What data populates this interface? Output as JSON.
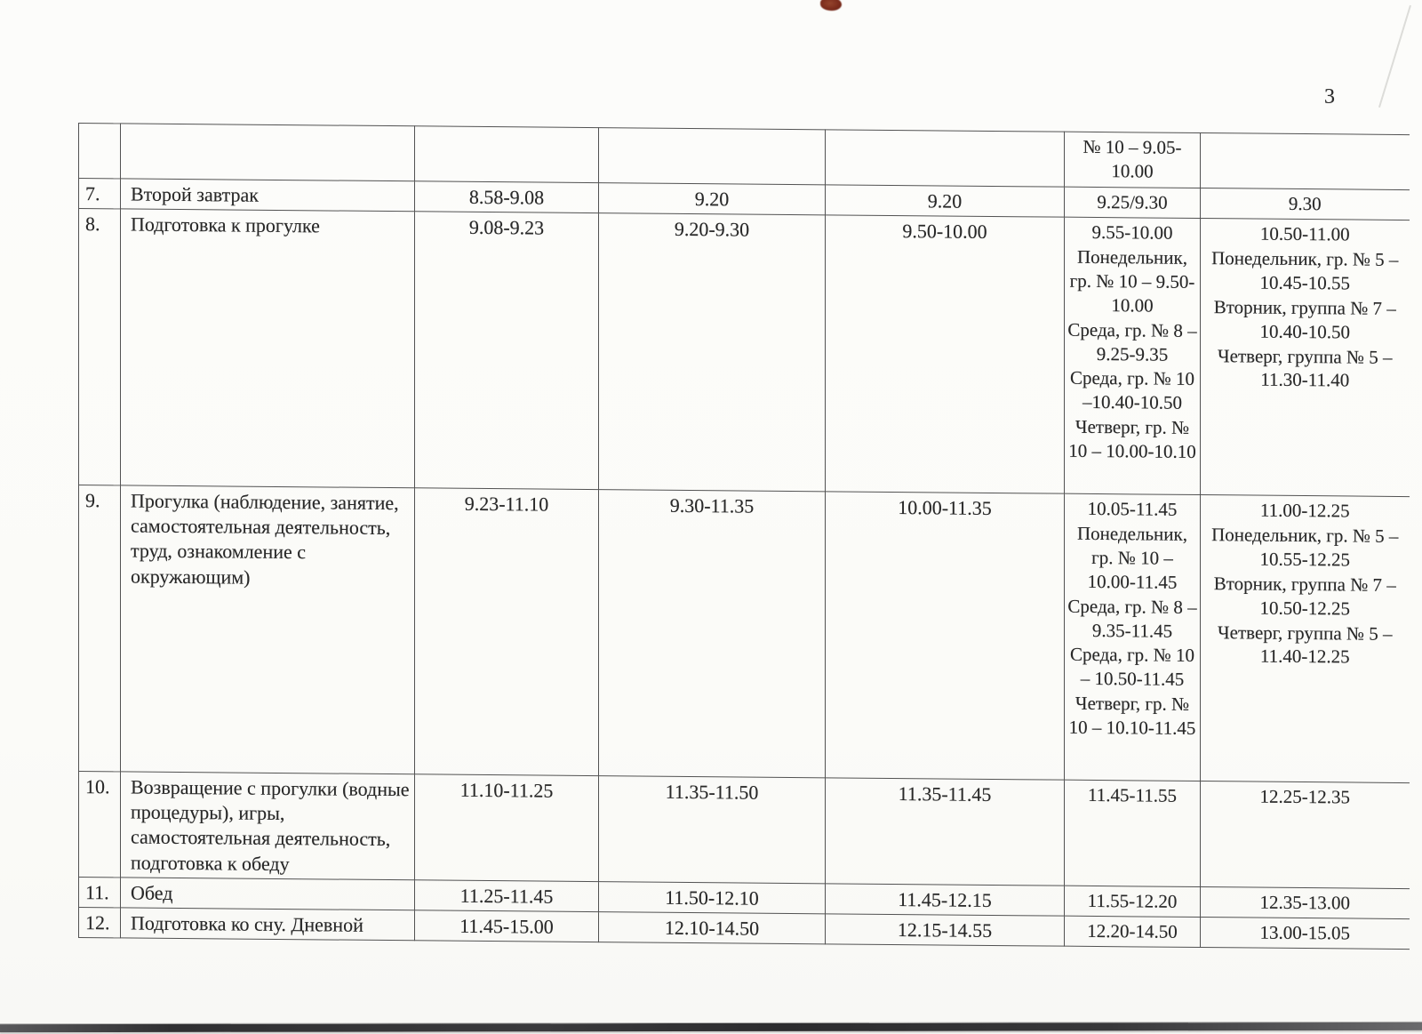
{
  "page": {
    "number": "3"
  },
  "colors": {
    "paper": "#fbfbf9",
    "ink": "#282828",
    "grid_line": "#525252",
    "stain": "#7c2c1c",
    "scanner_edge": "#303032"
  },
  "table": {
    "rows": [
      {
        "cells": [
          "",
          "",
          "",
          "",
          "",
          "№ 10 – 9.05-10.00",
          ""
        ]
      },
      {
        "cells": [
          "7.",
          "Второй завтрак",
          "8.58-9.08",
          "9.20",
          "9.20",
          "9.25/9.30",
          "9.30"
        ]
      },
      {
        "cells": [
          "8.",
          "Подготовка к прогулке",
          "9.08-9.23",
          "9.20-9.30",
          "9.50-10.00",
          [
            "9.55-10.00",
            "Понедельник, гр. № 10 – 9.50-10.00",
            "Среда, гр. № 8 – 9.25-9.35",
            "Среда, гр. № 10 –10.40-10.50",
            "Четверг, гр. № 10 – 10.00-10.10"
          ],
          [
            "10.50-11.00",
            "Понедельник, гр. № 5 – 10.45-10.55",
            "Вторник, группа № 7 – 10.40-10.50",
            "Четверг, группа № 5 – 11.30-11.40"
          ]
        ]
      },
      {
        "cells": [
          "9.",
          "Прогулка (наблюдение, занятие, самостоятельная деятельность, труд, ознакомление с окружающим)",
          "9.23-11.10",
          "9.30-11.35",
          "10.00-11.35",
          [
            "10.05-11.45",
            "Понедельник, гр. № 10 – 10.00-11.45",
            "Среда, гр. № 8 – 9.35-11.45",
            "Среда, гр. № 10 – 10.50-11.45",
            "Четверг, гр. № 10 – 10.10-11.45"
          ],
          [
            "11.00-12.25",
            "Понедельник, гр. № 5 – 10.55-12.25",
            "Вторник, группа № 7 – 10.50-12.25",
            "Четверг, группа № 5 – 11.40-12.25"
          ]
        ]
      },
      {
        "cells": [
          "10.",
          "Возвращение с прогулки (водные процедуры), игры, самостоятельная деятельность, подготовка к обеду",
          "11.10-11.25",
          "11.35-11.50",
          "11.35-11.45",
          "11.45-11.55",
          "12.25-12.35"
        ]
      },
      {
        "cells": [
          "11.",
          "Обед",
          "11.25-11.45",
          "11.50-12.10",
          "11.45-12.15",
          "11.55-12.20",
          "12.35-13.00"
        ]
      },
      {
        "cells": [
          "12.",
          "Подготовка ко сну. Дневной",
          "11.45-15.00",
          "12.10-14.50",
          "12.15-14.55",
          "12.20-14.50",
          "13.00-15.05"
        ]
      }
    ]
  }
}
